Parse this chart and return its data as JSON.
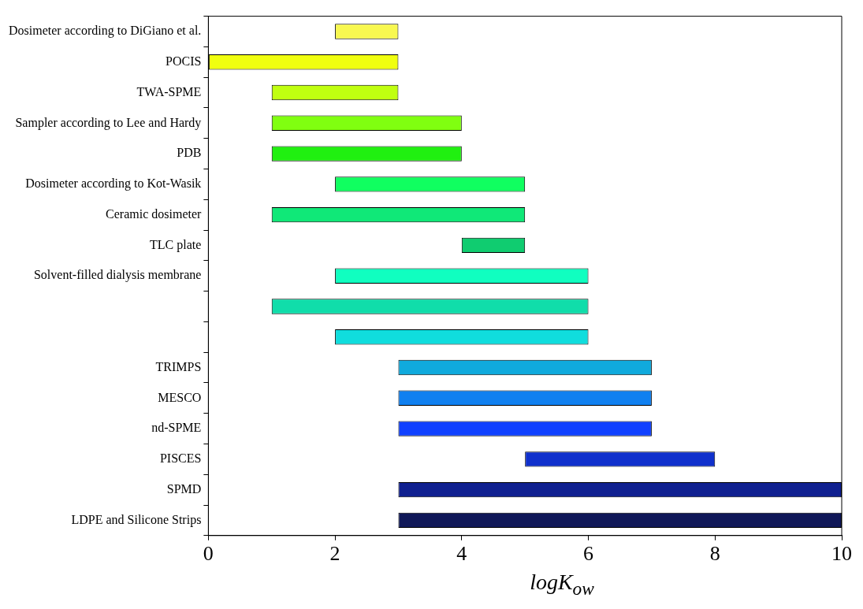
{
  "chart_data": {
    "type": "bar",
    "orientation": "horizontal",
    "xlabel": "logK$_{ow}$",
    "categories": [
      "Dosimeter according to DiGiano et al.",
      "POCIS",
      "TWA-SPME",
      "Sampler according to Lee and Hardy",
      "PDB",
      "Dosimeter according to Kot-Wasik",
      "Ceramic dosimeter",
      "TLC plate",
      "Solvent-filled dialysis membrane",
      null,
      null,
      "TRIMPS",
      "MESCO",
      "nd-SPME",
      "PISCES",
      "SPMD",
      "LDPE and Silicone Strips"
    ],
    "base": [
      2,
      0,
      1,
      1,
      1,
      2,
      1,
      4,
      2,
      1,
      2,
      3,
      3,
      3,
      5,
      3,
      3
    ],
    "values": [
      1,
      3,
      2,
      3,
      3,
      3,
      4,
      1,
      4,
      5,
      4,
      4,
      4,
      4,
      3,
      7,
      7
    ],
    "colors": [
      "#f8f850",
      "#f0ff10",
      "#c0ff10",
      "#80ff10",
      "#20f010",
      "#10ff60",
      "#10e878",
      "#10cc70",
      "#10ffc0",
      "#10ddaa",
      "#10dddd",
      "#10aadd",
      "#1080f0",
      "#1040ff",
      "#1030cc",
      "#102090",
      "#101858"
    ],
    "xlim": [
      0,
      10
    ],
    "xticks": [
      0,
      2,
      4,
      6,
      8,
      10
    ],
    "grid": false,
    "legend": false
  }
}
